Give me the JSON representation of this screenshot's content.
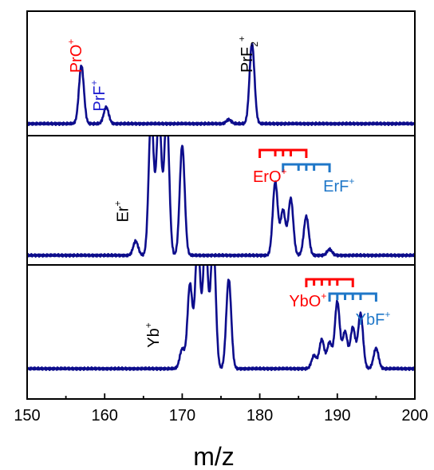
{
  "chart_data": {
    "type": "line",
    "xlabel": "m/z",
    "xlim": [
      150,
      200
    ],
    "xticks": [
      150,
      160,
      170,
      180,
      190,
      200
    ],
    "trace_color": "#0d0d8c",
    "panels": [
      {
        "name": "Pr",
        "annotations": [
          {
            "text": "PrO",
            "sup": "+",
            "mz": 157,
            "color": "#ff0000",
            "rotated": true
          },
          {
            "text": "PrF",
            "sup": "+",
            "mz": 160,
            "color": "#2020d0",
            "rotated": true
          },
          {
            "text": "PrF",
            "sub": "2",
            "sup": "+",
            "mz": 179,
            "color": "#000000",
            "rotated": true
          }
        ],
        "peaks": [
          {
            "mz": 157,
            "rel": 0.56
          },
          {
            "mz": 160.2,
            "rel": 0.16
          },
          {
            "mz": 176,
            "rel": 0.04
          },
          {
            "mz": 179,
            "rel": 0.77
          }
        ],
        "combs": []
      },
      {
        "name": "Er",
        "annotations": [
          {
            "text": "Er",
            "sup": "+",
            "mz": 163,
            "color": "#000000",
            "rotated": true
          },
          {
            "text": "ErO",
            "sup": "+",
            "mz": 181.3,
            "color": "#ff0000",
            "rotated": false
          },
          {
            "text": "ErF",
            "sup": "+",
            "mz": 190.2,
            "color": "#1f77c8",
            "rotated": false
          }
        ],
        "peaks": [
          {
            "mz": 164,
            "rel": 0.12
          },
          {
            "mz": 166,
            "rel": 1.2
          },
          {
            "mz": 167,
            "rel": 1.2
          },
          {
            "mz": 168,
            "rel": 1.2
          },
          {
            "mz": 170,
            "rel": 0.93
          },
          {
            "mz": 182,
            "rel": 0.62
          },
          {
            "mz": 183,
            "rel": 0.38
          },
          {
            "mz": 184,
            "rel": 0.48
          },
          {
            "mz": 186,
            "rel": 0.33
          },
          {
            "mz": 189,
            "rel": 0.05
          }
        ],
        "combs": [
          {
            "color": "#ff0000",
            "mz": [
              180,
              182,
              183,
              184,
              186
            ]
          },
          {
            "color": "#1f77c8",
            "mz": [
              183,
              185,
              186,
              187,
              189
            ]
          }
        ]
      },
      {
        "name": "Yb",
        "annotations": [
          {
            "text": "Yb",
            "sup": "+",
            "mz": 167,
            "color": "#000000",
            "rotated": true
          },
          {
            "text": "YbO",
            "sup": "+",
            "mz": 186.2,
            "color": "#ff0000",
            "rotated": false
          },
          {
            "text": "YbF",
            "sup": "+",
            "mz": 194.6,
            "color": "#1f77c8",
            "rotated": false
          }
        ],
        "peaks": [
          {
            "mz": 170,
            "rel": 0.18
          },
          {
            "mz": 171,
            "rel": 0.78
          },
          {
            "mz": 172,
            "rel": 1.2
          },
          {
            "mz": 173,
            "rel": 1.2
          },
          {
            "mz": 174,
            "rel": 1.2
          },
          {
            "mz": 176,
            "rel": 0.83
          },
          {
            "mz": 187,
            "rel": 0.12
          },
          {
            "mz": 188,
            "rel": 0.27
          },
          {
            "mz": 189,
            "rel": 0.24
          },
          {
            "mz": 190,
            "rel": 0.62
          },
          {
            "mz": 191,
            "rel": 0.34
          },
          {
            "mz": 192,
            "rel": 0.38
          },
          {
            "mz": 193,
            "rel": 0.51
          },
          {
            "mz": 195,
            "rel": 0.19
          }
        ],
        "combs": [
          {
            "color": "#ff0000",
            "mz": [
              186,
              187,
              188,
              189,
              190,
              192
            ]
          },
          {
            "color": "#1f77c8",
            "mz": [
              189,
              190,
              191,
              192,
              193,
              195
            ]
          }
        ]
      }
    ]
  }
}
